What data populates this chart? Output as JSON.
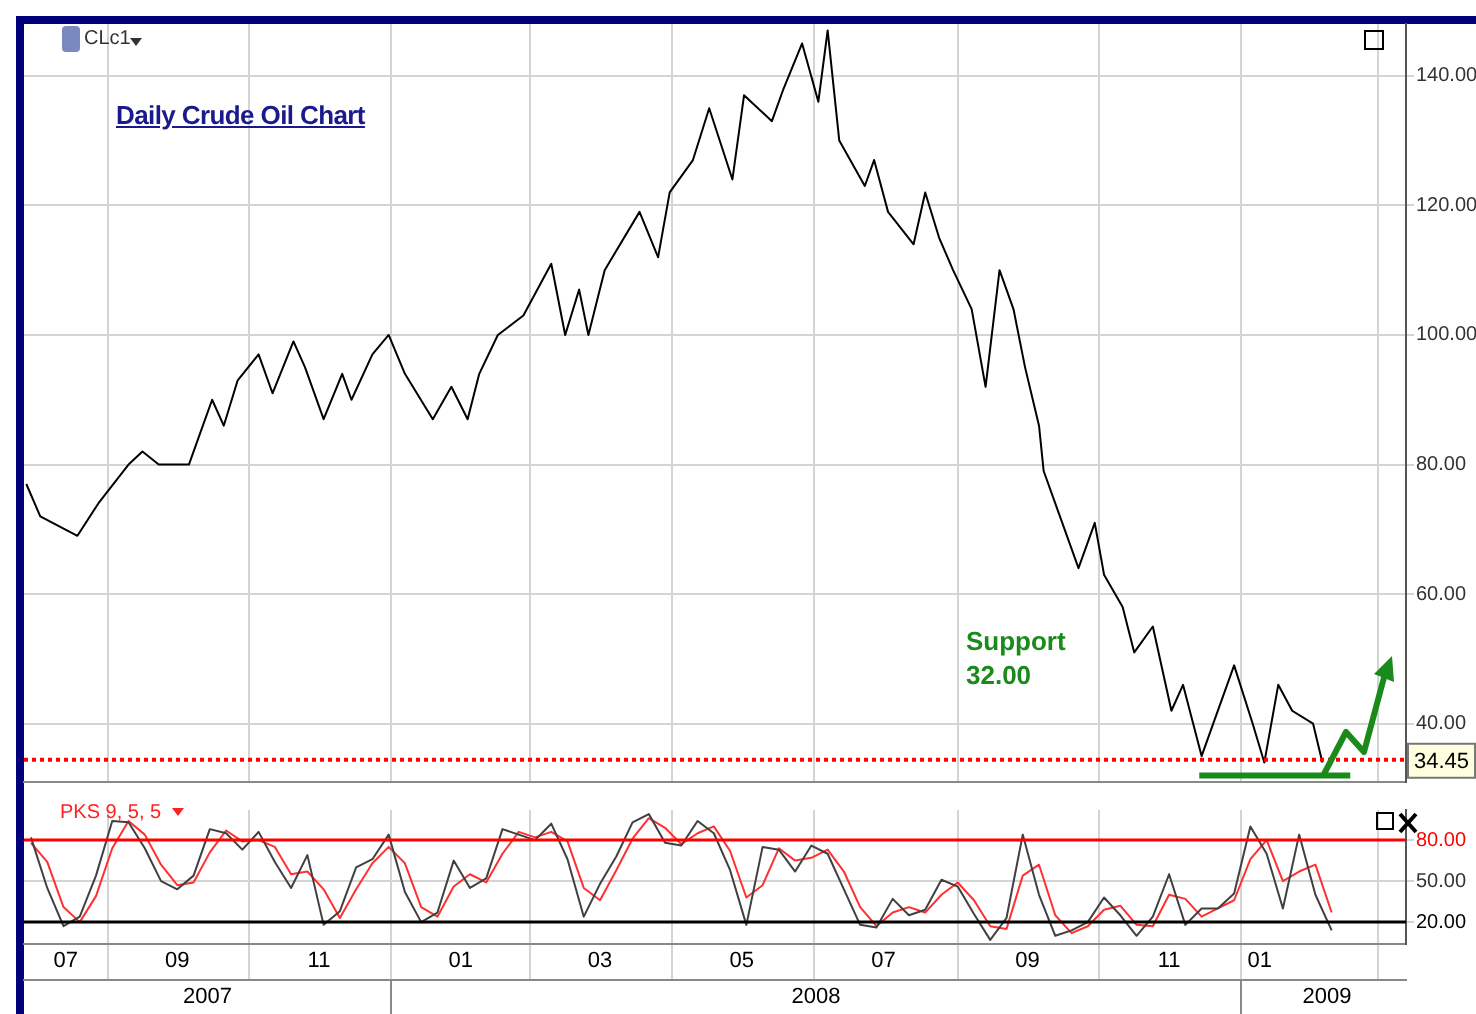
{
  "chart_data": [
    {
      "type": "line",
      "title": "Daily Crude Oil Chart",
      "annotations": [
        "CLc1",
        "Support 32.00"
      ],
      "xlim": [
        "2007-07-27",
        "2009-03-13"
      ],
      "xticks": [
        {
          "value": "2007-09-01",
          "label": null
        },
        {
          "value": "2007-11-01",
          "label": null
        },
        {
          "value": "2008-01-01",
          "label": null
        },
        {
          "value": "2008-03-01",
          "label": null
        },
        {
          "value": "2008-05-01",
          "label": null
        },
        {
          "value": "2008-07-01",
          "label": null
        },
        {
          "value": "2008-09-01",
          "label": null
        },
        {
          "value": "2008-11-01",
          "label": null
        },
        {
          "value": "2009-01-01",
          "label": null
        },
        {
          "value": "2009-03-01",
          "label": null
        }
      ],
      "ylim": [
        31,
        148
      ],
      "yticks": [
        {
          "value": 40,
          "label": "40.00"
        },
        {
          "value": 60,
          "label": "60.00"
        },
        {
          "value": 80,
          "label": "80.00"
        },
        {
          "value": 100,
          "label": "100.00"
        },
        {
          "value": 120,
          "label": "120.00"
        },
        {
          "value": 140,
          "label": "140.00"
        }
      ],
      "tick_labels": "y",
      "grid": true,
      "marker": "none",
      "series": [
        {
          "color": "#000000",
          "x": [
            "2007-07-28",
            "2007-08-03",
            "2007-08-19",
            "2007-08-28",
            "2007-09-10",
            "2007-09-16",
            "2007-09-23",
            "2007-10-06",
            "2007-10-10",
            "2007-10-16",
            "2007-10-21",
            "2007-10-27",
            "2007-11-05",
            "2007-11-11",
            "2007-11-20",
            "2007-11-25",
            "2007-12-03",
            "2007-12-11",
            "2007-12-15",
            "2007-12-24",
            "2007-12-31",
            "2008-01-07",
            "2008-01-19",
            "2008-01-27",
            "2008-02-03",
            "2008-02-08",
            "2008-02-16",
            "2008-02-27",
            "2008-03-10",
            "2008-03-16",
            "2008-03-22",
            "2008-03-26",
            "2008-04-02",
            "2008-04-17",
            "2008-04-25",
            "2008-04-30",
            "2008-05-10",
            "2008-05-17",
            "2008-05-27",
            "2008-06-01",
            "2008-06-13",
            "2008-06-18",
            "2008-06-26",
            "2008-07-03",
            "2008-07-07",
            "2008-07-12",
            "2008-07-23",
            "2008-07-27",
            "2008-08-02",
            "2008-08-13",
            "2008-08-18",
            "2008-08-24",
            "2008-08-30",
            "2008-09-07",
            "2008-09-13",
            "2008-09-19",
            "2008-09-25",
            "2008-09-30",
            "2008-10-06",
            "2008-10-08",
            "2008-10-14",
            "2008-10-23",
            "2008-10-30",
            "2008-11-03",
            "2008-11-11",
            "2008-11-16",
            "2008-11-24",
            "2008-12-02",
            "2008-12-07",
            "2008-12-15",
            "2008-12-20",
            "2008-12-29",
            "2009-01-06",
            "2009-01-11",
            "2009-01-17",
            "2009-01-23",
            "2009-02-01",
            "2009-02-05"
          ],
          "values": [
            77,
            72,
            69,
            74,
            80,
            82,
            80,
            80,
            84,
            90,
            86,
            93,
            97,
            91,
            99,
            95,
            87,
            94,
            90,
            97,
            100,
            94,
            87,
            92,
            87,
            94,
            100,
            103,
            111,
            100,
            107,
            100,
            110,
            119,
            112,
            122,
            127,
            135,
            124,
            137,
            133,
            138,
            145,
            136,
            147,
            130,
            123,
            127,
            119,
            114,
            122,
            115,
            110,
            104,
            92,
            110,
            104,
            95,
            86,
            79,
            73,
            64,
            71,
            63,
            58,
            51,
            55,
            42,
            46,
            35,
            40,
            49,
            40,
            34,
            46,
            42,
            40,
            34
          ]
        },
        {
          "type": "line",
          "color": "#1a8a1a",
          "x": [
            "2008-12-14",
            "2009-02-17"
          ],
          "values": [
            32,
            32
          ]
        }
      ],
      "ref_lines": [
        {
          "axis": "y",
          "value": 34.45,
          "label": "34.45",
          "color": "#ff0000",
          "line_style": "dotted"
        }
      ]
    },
    {
      "type": "line",
      "title": "PKS 9, 5, 5",
      "xlim": [
        "2007-07-27",
        "2009-03-13"
      ],
      "xticks": [
        {
          "value": "2007-09-01",
          "label": null
        },
        {
          "value": "2007-11-01",
          "label": null
        },
        {
          "value": "2008-01-01",
          "label": null
        },
        {
          "value": "2008-03-01",
          "label": null
        },
        {
          "value": "2008-05-01",
          "label": null
        },
        {
          "value": "2008-07-01",
          "label": null
        },
        {
          "value": "2008-09-01",
          "label": null
        },
        {
          "value": "2008-11-01",
          "label": null
        },
        {
          "value": "2009-01-01",
          "label": null
        },
        {
          "value": "2009-03-01",
          "label": null
        },
        {
          "value": "2007-08-14",
          "label": "07"
        },
        {
          "value": "2007-10-01",
          "label": "09"
        },
        {
          "value": "2007-12-01",
          "label": "11"
        },
        {
          "value": "2008-01-31",
          "label": "01"
        },
        {
          "value": "2008-03-31",
          "label": "03"
        },
        {
          "value": "2008-05-31",
          "label": "05"
        },
        {
          "value": "2008-07-31",
          "label": "07"
        },
        {
          "value": "2008-10-01",
          "label": "09"
        },
        {
          "value": "2008-12-01",
          "label": "11"
        },
        {
          "value": "2009-01-09",
          "label": "01"
        }
      ],
      "x2lim": [
        "2007-07-27",
        "2009-03-13"
      ],
      "x2ticks": [
        {
          "value": "2008-01-01",
          "label": null
        },
        {
          "value": "2009-01-01",
          "label": null
        },
        {
          "value": "2007-10-14",
          "label": "2007"
        },
        {
          "value": "2008-07-02",
          "label": "2008"
        },
        {
          "value": "2009-02-07",
          "label": "2009"
        }
      ],
      "ylim": [
        4,
        102
      ],
      "yticks": [
        {
          "value": 20,
          "label": "20.00"
        },
        {
          "value": 50,
          "label": "50.00"
        },
        {
          "value": 80,
          "label": "80.00"
        }
      ],
      "grid": true,
      "marker": "none",
      "x": [
        "2007-07-30",
        "2007-08-06",
        "2007-08-13",
        "2007-08-20",
        "2007-08-27",
        "2007-09-03",
        "2007-09-10",
        "2007-09-17",
        "2007-09-24",
        "2007-10-01",
        "2007-10-08",
        "2007-10-15",
        "2007-10-22",
        "2007-10-29",
        "2007-11-05",
        "2007-11-12",
        "2007-11-19",
        "2007-11-26",
        "2007-12-03",
        "2007-12-10",
        "2007-12-17",
        "2007-12-24",
        "2007-12-31",
        "2008-01-07",
        "2008-01-14",
        "2008-01-21",
        "2008-01-28",
        "2008-02-04",
        "2008-02-11",
        "2008-02-18",
        "2008-02-25",
        "2008-03-03",
        "2008-03-10",
        "2008-03-17",
        "2008-03-24",
        "2008-03-31",
        "2008-04-07",
        "2008-04-14",
        "2008-04-21",
        "2008-04-28",
        "2008-05-05",
        "2008-05-12",
        "2008-05-19",
        "2008-05-26",
        "2008-06-02",
        "2008-06-09",
        "2008-06-16",
        "2008-06-23",
        "2008-06-30",
        "2008-07-07",
        "2008-07-14",
        "2008-07-21",
        "2008-07-28",
        "2008-08-04",
        "2008-08-11",
        "2008-08-18",
        "2008-08-25",
        "2008-09-01",
        "2008-09-08",
        "2008-09-15",
        "2008-09-22",
        "2008-09-29",
        "2008-10-06",
        "2008-10-13",
        "2008-10-20",
        "2008-10-27",
        "2008-11-03",
        "2008-11-10",
        "2008-11-17",
        "2008-11-24",
        "2008-12-01",
        "2008-12-08",
        "2008-12-15",
        "2008-12-22",
        "2008-12-29",
        "2009-01-05",
        "2009-01-12",
        "2009-01-19",
        "2009-01-26",
        "2009-02-02",
        "2009-02-09"
      ],
      "series": [
        {
          "color": "#404040",
          "values": [
            82,
            45,
            17,
            24,
            54,
            94,
            93,
            74,
            50,
            44,
            54,
            88,
            85,
            73,
            86,
            64,
            45,
            69,
            18,
            28,
            60,
            66,
            84,
            42,
            20,
            27,
            65,
            45,
            52,
            88,
            84,
            80,
            92,
            66,
            24,
            48,
            68,
            93,
            99,
            78,
            76,
            94,
            85,
            58,
            18,
            75,
            73,
            57,
            76,
            70,
            44,
            18,
            16,
            37,
            25,
            29,
            51,
            46,
            26,
            7,
            23,
            84,
            40,
            10,
            14,
            20,
            38,
            25,
            10,
            24,
            55,
            18,
            30,
            30,
            41,
            90,
            70,
            30,
            84,
            40,
            14
          ]
        },
        {
          "color": "#ff3030",
          "values": [
            78,
            64,
            31,
            20,
            39,
            74,
            94,
            84,
            62,
            47,
            49,
            71,
            87,
            79,
            80,
            75,
            55,
            57,
            44,
            23,
            44,
            63,
            75,
            63,
            31,
            24,
            46,
            55,
            49,
            70,
            86,
            82,
            86,
            79,
            45,
            36,
            58,
            81,
            96,
            89,
            77,
            85,
            90,
            72,
            38,
            47,
            74,
            65,
            67,
            73,
            57,
            31,
            17,
            27,
            31,
            27,
            40,
            49,
            36,
            17,
            15,
            54,
            62,
            25,
            12,
            17,
            29,
            32,
            18,
            17,
            40,
            37,
            24,
            30,
            36,
            66,
            80,
            50,
            57,
            62,
            27
          ]
        }
      ],
      "ref_lines": [
        {
          "axis": "y",
          "value": 80,
          "color": "#ff0000"
        },
        {
          "axis": "y",
          "value": 20,
          "color": "#000000"
        }
      ]
    }
  ]
}
